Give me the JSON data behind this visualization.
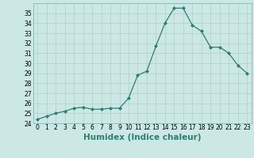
{
  "x": [
    0,
    1,
    2,
    3,
    4,
    5,
    6,
    7,
    8,
    9,
    10,
    11,
    12,
    13,
    14,
    15,
    16,
    17,
    18,
    19,
    20,
    21,
    22,
    23
  ],
  "y": [
    24.4,
    24.7,
    25.0,
    25.2,
    25.5,
    25.6,
    25.4,
    25.4,
    25.5,
    25.5,
    26.5,
    28.8,
    29.2,
    31.7,
    34.0,
    35.5,
    35.5,
    33.8,
    33.2,
    31.6,
    31.6,
    31.0,
    29.8,
    29.0
  ],
  "xlabel": "Humidex (Indice chaleur)",
  "ylim": [
    24,
    36
  ],
  "xlim": [
    -0.5,
    23.5
  ],
  "yticks": [
    24,
    25,
    26,
    27,
    28,
    29,
    30,
    31,
    32,
    33,
    34,
    35
  ],
  "xticks": [
    0,
    1,
    2,
    3,
    4,
    5,
    6,
    7,
    8,
    9,
    10,
    11,
    12,
    13,
    14,
    15,
    16,
    17,
    18,
    19,
    20,
    21,
    22,
    23
  ],
  "line_color": "#2d7d74",
  "bg_color": "#cce8e4",
  "grid_color": "#b0d0cc",
  "tick_fontsize": 5.5,
  "label_fontsize": 7.5
}
